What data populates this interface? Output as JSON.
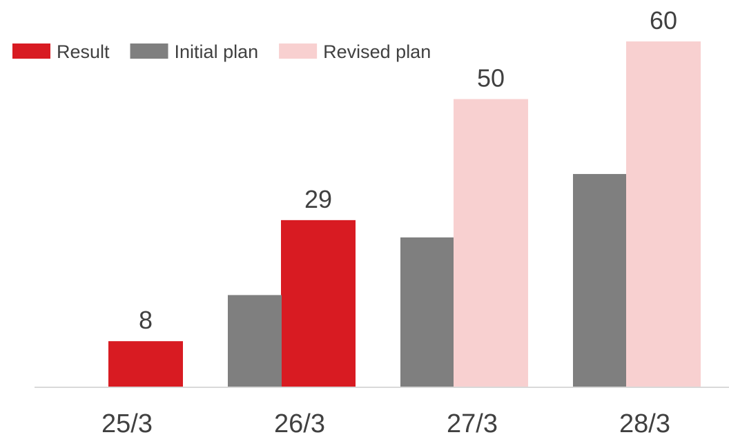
{
  "chart_data": {
    "type": "bar",
    "categories": [
      "25/3",
      "26/3",
      "27/3",
      "28/3"
    ],
    "series": [
      {
        "name": "Result",
        "color": "#d81b22",
        "values": [
          8,
          29,
          null,
          null
        ]
      },
      {
        "name": "Initial plan",
        "color": "#7f7f7f",
        "values": [
          null,
          16,
          26,
          37
        ]
      },
      {
        "name": "Revised plan",
        "color": "#f8d0d0",
        "values": [
          null,
          null,
          50,
          60
        ]
      }
    ],
    "data_labels": [
      {
        "category": "25/3",
        "series": "Result",
        "text": "8"
      },
      {
        "category": "26/3",
        "series": "Result",
        "text": "29"
      },
      {
        "category": "27/3",
        "series": "Revised plan",
        "text": "50"
      },
      {
        "category": "28/3",
        "series": "Revised plan",
        "text": "60"
      }
    ],
    "ylim": [
      0,
      60
    ],
    "grid": false,
    "legend_position": "top-left"
  }
}
